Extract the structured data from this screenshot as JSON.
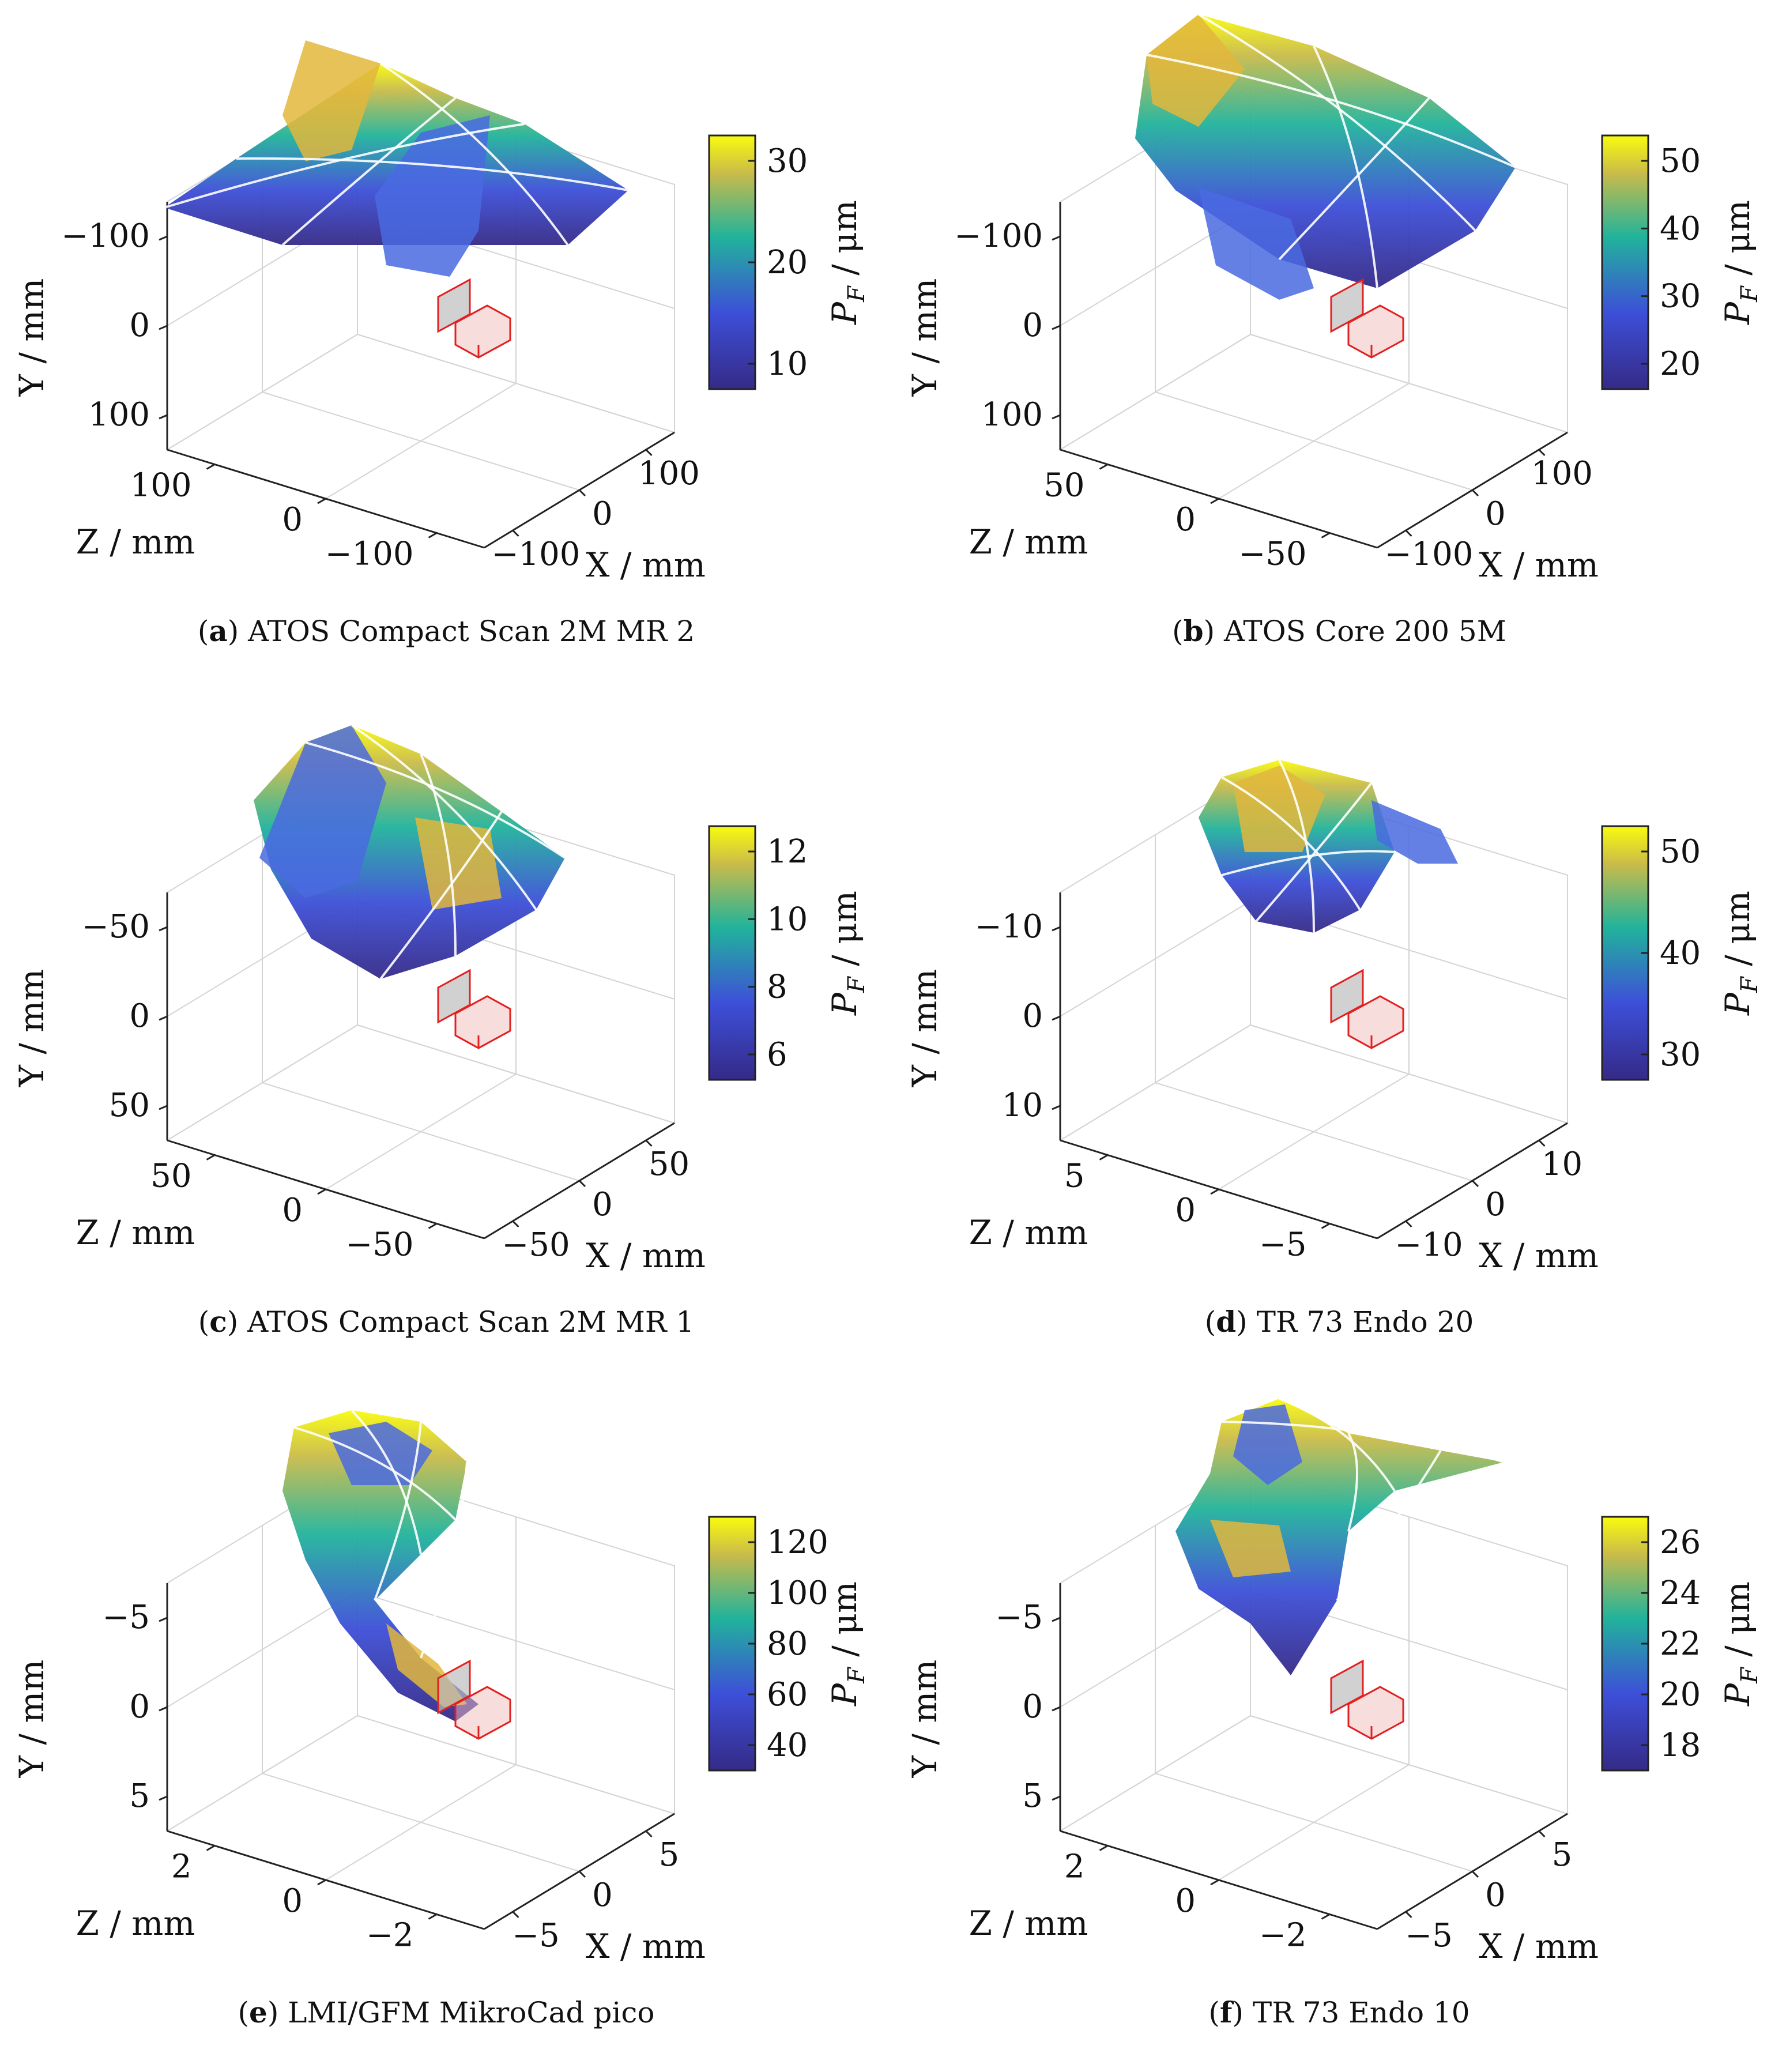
{
  "figure": {
    "panels": [
      {
        "id": "a",
        "caption_tag": "a",
        "caption_text": " ATOS Compact Scan 2M MR 2",
        "colorbar_ticks": [
          "10",
          "20",
          "30"
        ],
        "y_ticks": [
          "100",
          "0",
          "−100"
        ],
        "z_ticks": [
          "100",
          "0",
          "−100"
        ],
        "x_ticks": [
          "−100",
          "0",
          "100"
        ],
        "surface": "broad"
      },
      {
        "id": "b",
        "caption_tag": "b",
        "caption_text": " ATOS Core 200 5M",
        "colorbar_ticks": [
          "20",
          "30",
          "40",
          "50"
        ],
        "y_ticks": [
          "100",
          "0",
          "−100"
        ],
        "z_ticks": [
          "50",
          "0",
          "−50"
        ],
        "x_ticks": [
          "−100",
          "0",
          "100"
        ],
        "surface": "triangle"
      },
      {
        "id": "c",
        "caption_tag": "c",
        "caption_text": " ATOS Compact Scan 2M MR 1",
        "colorbar_ticks": [
          "6",
          "8",
          "10",
          "12"
        ],
        "y_ticks": [
          "50",
          "0",
          "−50"
        ],
        "z_ticks": [
          "50",
          "0",
          "−50"
        ],
        "x_ticks": [
          "−50",
          "0",
          "50"
        ],
        "surface": "tall"
      },
      {
        "id": "d",
        "caption_tag": "d",
        "caption_text": " TR 73 Endo 20",
        "colorbar_ticks": [
          "30",
          "40",
          "50"
        ],
        "y_ticks": [
          "10",
          "0",
          "−10"
        ],
        "z_ticks": [
          "5",
          "0",
          "−5"
        ],
        "x_ticks": [
          "−10",
          "0",
          "10"
        ],
        "surface": "blob"
      },
      {
        "id": "e",
        "caption_tag": "e",
        "caption_text": " LMI/GFM MikroCad pico",
        "colorbar_ticks": [
          "40",
          "60",
          "80",
          "100",
          "120"
        ],
        "y_ticks": [
          "5",
          "0",
          "−5"
        ],
        "z_ticks": [
          "2",
          "0",
          "−2"
        ],
        "x_ticks": [
          "−5",
          "0",
          "5"
        ],
        "surface": "hook"
      },
      {
        "id": "f",
        "caption_tag": "f",
        "caption_text": " TR 73 Endo 10",
        "colorbar_ticks": [
          "18",
          "20",
          "22",
          "24",
          "26"
        ],
        "y_ticks": [
          "5",
          "0",
          "−5"
        ],
        "z_ticks": [
          "2",
          "0",
          "−2"
        ],
        "x_ticks": [
          "−5",
          "0",
          "5"
        ],
        "surface": "star"
      }
    ],
    "axis_labels": {
      "x": "X / mm",
      "y": "Y / mm",
      "z": "Z / mm"
    },
    "colorbar_label_main": "P",
    "colorbar_label_sub": "F",
    "colorbar_label_unit": " / μm"
  },
  "chart_data": [
    {
      "type": "surface3d",
      "title": "ATOS Compact Scan 2M MR 2",
      "xlabel": "X / mm",
      "ylabel": "Y / mm",
      "zlabel": "Z / mm",
      "colorbar_label": "P_F / μm",
      "x_ticks": [
        -100,
        0,
        100
      ],
      "y_ticks": [
        -100,
        0,
        100
      ],
      "z_ticks": [
        -100,
        0,
        100
      ],
      "colorbar_range": [
        8,
        36
      ],
      "colorbar_ticks": [
        10,
        20,
        30
      ],
      "colormap": "parula"
    },
    {
      "type": "surface3d",
      "title": "ATOS Core 200 5M",
      "xlabel": "X / mm",
      "ylabel": "Y / mm",
      "zlabel": "Z / mm",
      "colorbar_label": "P_F / μm",
      "x_ticks": [
        -100,
        0,
        100
      ],
      "y_ticks": [
        -100,
        0,
        100
      ],
      "z_ticks": [
        -50,
        0,
        50
      ],
      "colorbar_range": [
        11,
        52
      ],
      "colorbar_ticks": [
        20,
        30,
        40,
        50
      ],
      "colormap": "parula"
    },
    {
      "type": "surface3d",
      "title": "ATOS Compact Scan 2M MR 1",
      "xlabel": "X / mm",
      "ylabel": "Y / mm",
      "zlabel": "Z / mm",
      "colorbar_label": "P_F / μm",
      "x_ticks": [
        -50,
        0,
        50
      ],
      "y_ticks": [
        -50,
        0,
        50
      ],
      "z_ticks": [
        -50,
        0,
        50
      ],
      "colorbar_range": [
        5.8,
        13.2
      ],
      "colorbar_ticks": [
        6,
        8,
        10,
        12
      ],
      "colormap": "parula"
    },
    {
      "type": "surface3d",
      "title": "TR 73 Endo 20",
      "xlabel": "X / mm",
      "ylabel": "Y / mm",
      "zlabel": "Z / mm",
      "colorbar_label": "P_F / μm",
      "x_ticks": [
        -10,
        0,
        10
      ],
      "y_ticks": [
        -10,
        0,
        10
      ],
      "z_ticks": [
        -5,
        0,
        5
      ],
      "colorbar_range": [
        26,
        52
      ],
      "colorbar_ticks": [
        30,
        40,
        50
      ],
      "colormap": "parula"
    },
    {
      "type": "surface3d",
      "title": "LMI/GFM MikroCad pico",
      "xlabel": "X / mm",
      "ylabel": "Y / mm",
      "zlabel": "Z / mm",
      "colorbar_label": "P_F / μm",
      "x_ticks": [
        -5,
        0,
        5
      ],
      "y_ticks": [
        -5,
        0,
        5
      ],
      "z_ticks": [
        -2,
        0,
        2
      ],
      "colorbar_range": [
        30,
        138
      ],
      "colorbar_ticks": [
        40,
        60,
        80,
        100,
        120
      ],
      "colormap": "parula"
    },
    {
      "type": "surface3d",
      "title": "TR 73 Endo 10",
      "xlabel": "X / mm",
      "ylabel": "Y / mm",
      "zlabel": "Z / mm",
      "colorbar_label": "P_F / μm",
      "x_ticks": [
        -5,
        0,
        5
      ],
      "y_ticks": [
        -5,
        0,
        5
      ],
      "z_ticks": [
        -2,
        0,
        2
      ],
      "colorbar_range": [
        16.5,
        27
      ],
      "colorbar_ticks": [
        18,
        20,
        22,
        24,
        26
      ],
      "colormap": "parula"
    }
  ]
}
